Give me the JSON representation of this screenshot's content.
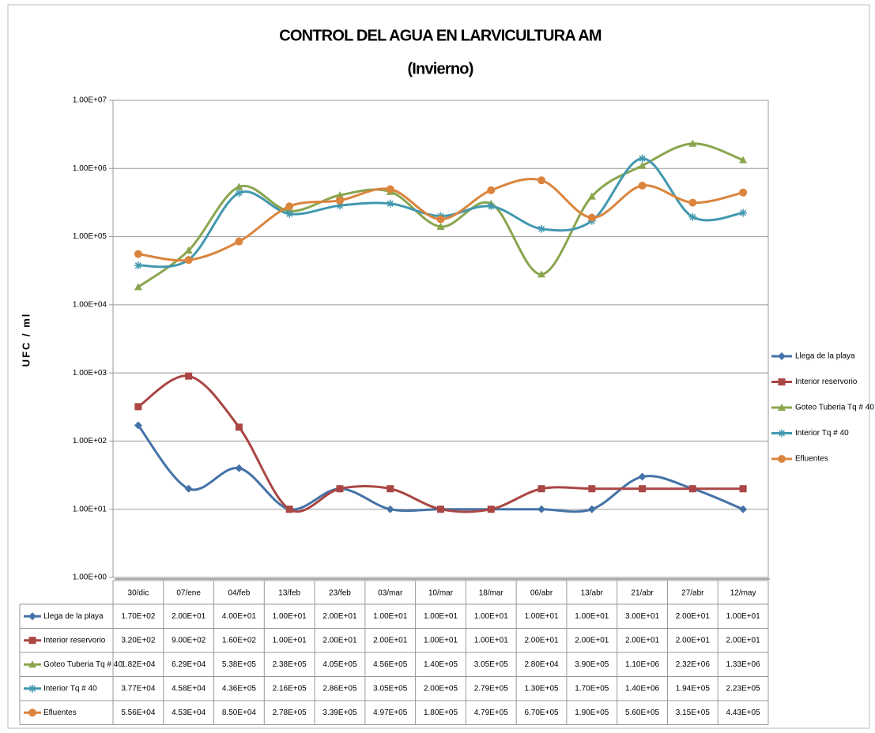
{
  "chart_data": {
    "type": "line",
    "title": "CONTROL DEL AGUA EN LARVICULTURA AM",
    "subtitle": "(Invierno)",
    "y_label": "UFC / ml",
    "log_scale": true,
    "grid": true,
    "smooth": true,
    "legend": "right",
    "categories": [
      "30/dic",
      "07/ene",
      "04/feb",
      "13/feb",
      "23/feb",
      "03/mar",
      "10/mar",
      "18/mar",
      "06/abr",
      "13/abr",
      "21/abr",
      "27/abr",
      "12/may"
    ],
    "ylim": [
      1,
      10000000
    ],
    "yticks": [
      {
        "value": 1,
        "label": "1.00E+00"
      },
      {
        "value": 10,
        "label": "1.00E+01"
      },
      {
        "value": 100,
        "label": "1.00E+02"
      },
      {
        "value": 1000,
        "label": "1.00E+03"
      },
      {
        "value": 10000,
        "label": "1.00E+04"
      },
      {
        "value": 100000,
        "label": "1.00E+05"
      },
      {
        "value": 1000000,
        "label": "1.00E+06"
      },
      {
        "value": 10000000,
        "label": "1.00E+07"
      }
    ],
    "series": [
      {
        "name": "Llega de la playa",
        "color": "#4572a7",
        "marker": "diamond",
        "values": [
          170,
          20,
          40,
          10,
          20,
          10,
          10,
          10,
          10,
          10,
          30,
          20,
          10
        ],
        "value_labels": [
          "1.70E+02",
          "2.00E+01",
          "4.00E+01",
          "1.00E+01",
          "2.00E+01",
          "1.00E+01",
          "1.00E+01",
          "1.00E+01",
          "1.00E+01",
          "1.00E+01",
          "3.00E+01",
          "2.00E+01",
          "1.00E+01"
        ]
      },
      {
        "name": "Interior reservorio",
        "color": "#aa4643",
        "marker": "square",
        "values": [
          320,
          900,
          160,
          10,
          20,
          20,
          10,
          10,
          20,
          20,
          20,
          20,
          20
        ],
        "value_labels": [
          "3.20E+02",
          "9.00E+02",
          "1.60E+02",
          "1.00E+01",
          "2.00E+01",
          "2.00E+01",
          "1.00E+01",
          "1.00E+01",
          "2.00E+01",
          "2.00E+01",
          "2.00E+01",
          "2.00E+01",
          "2.00E+01"
        ]
      },
      {
        "name": "Goteo Tuberia Tq # 40",
        "color": "#89a54e",
        "marker": "triangle",
        "values": [
          18200,
          62900,
          538000,
          238000,
          405000,
          456000,
          140000,
          305000,
          28000,
          390000,
          1100000,
          2320000,
          1330000
        ],
        "value_labels": [
          "1.82E+04",
          "6.29E+04",
          "5.38E+05",
          "2.38E+05",
          "4.05E+05",
          "4.56E+05",
          "1.40E+05",
          "3.05E+05",
          "2.80E+04",
          "3.90E+05",
          "1.10E+06",
          "2.32E+06",
          "1.33E+06"
        ]
      },
      {
        "name": "Interior Tq # 40",
        "color": "#4198af",
        "marker": "asterisk",
        "values": [
          37700,
          45800,
          436000,
          216000,
          286000,
          305000,
          200000,
          279000,
          130000,
          170000,
          1400000,
          194000,
          223000
        ],
        "value_labels": [
          "3.77E+04",
          "4.58E+04",
          "4.36E+05",
          "2.16E+05",
          "2.86E+05",
          "3.05E+05",
          "2.00E+05",
          "2.79E+05",
          "1.30E+05",
          "1.70E+05",
          "1.40E+06",
          "1.94E+05",
          "2.23E+05"
        ]
      },
      {
        "name": "Efluentes",
        "color": "#db843d",
        "marker": "circle",
        "values": [
          55600,
          45300,
          85000,
          278000,
          339000,
          497000,
          180000,
          479000,
          670000,
          190000,
          560000,
          315000,
          443000
        ],
        "value_labels": [
          "5.56E+04",
          "4.53E+04",
          "8.50E+04",
          "2.78E+05",
          "3.39E+05",
          "4.97E+05",
          "1.80E+05",
          "4.79E+05",
          "6.70E+05",
          "1.90E+05",
          "5.60E+05",
          "3.15E+05",
          "4.43E+05"
        ]
      }
    ]
  }
}
